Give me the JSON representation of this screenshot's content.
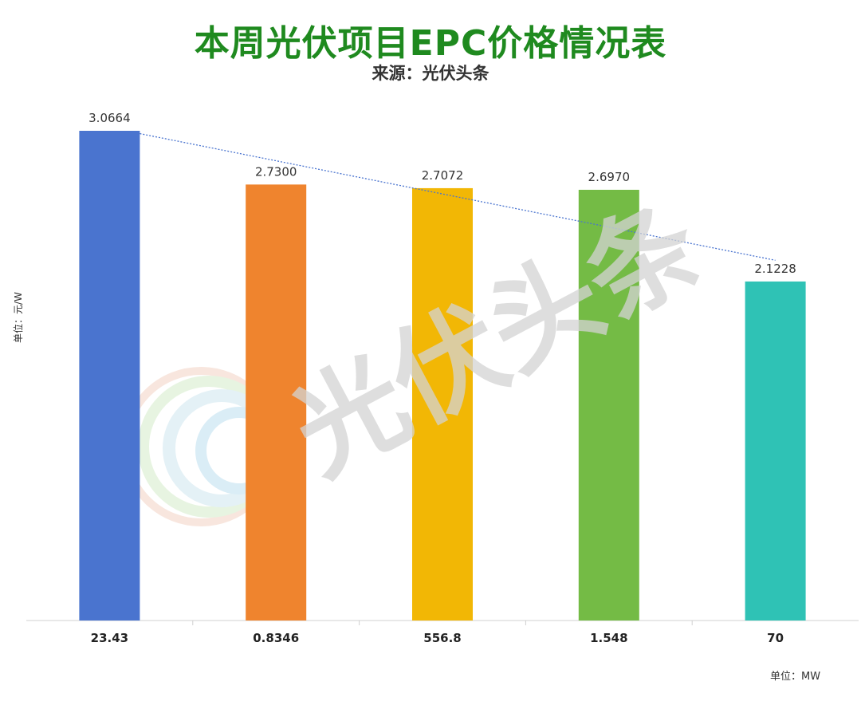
{
  "title": "本周光伏项目EPC价格情况表",
  "subtitle": "来源：光伏头条",
  "y_unit_label": "单位：元/W",
  "x_unit_label": "单位：MW",
  "watermark": {
    "text": "光伏头条"
  },
  "chart_data": {
    "type": "bar",
    "categories": [
      "23.43",
      "0.8346",
      "556.8",
      "1.548",
      "70"
    ],
    "values": [
      3.0664,
      2.73,
      2.7072,
      2.697,
      2.1228
    ],
    "value_labels": [
      "3.0664",
      "2.7300",
      "2.7072",
      "2.6970",
      "2.1228"
    ],
    "colors": [
      "#4a74cf",
      "#ef842e",
      "#f2b705",
      "#74bb45",
      "#2fc2b5"
    ],
    "ylim": [
      0,
      3.0664
    ],
    "trendline": {
      "type": "linear",
      "color": "#4a74cf",
      "style": "dotted"
    },
    "grid": false,
    "legend": "none"
  }
}
